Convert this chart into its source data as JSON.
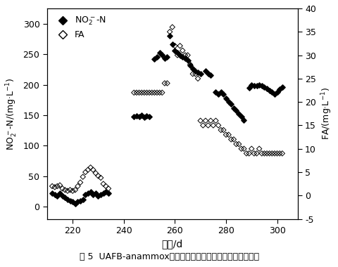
{
  "no2_n_data": [
    [
      212,
      22
    ],
    [
      213,
      20
    ],
    [
      214,
      18
    ],
    [
      215,
      22
    ],
    [
      216,
      18
    ],
    [
      217,
      15
    ],
    [
      218,
      12
    ],
    [
      219,
      10
    ],
    [
      220,
      8
    ],
    [
      221,
      5
    ],
    [
      222,
      8
    ],
    [
      223,
      10
    ],
    [
      224,
      12
    ],
    [
      225,
      20
    ],
    [
      226,
      22
    ],
    [
      227,
      25
    ],
    [
      228,
      20
    ],
    [
      229,
      22
    ],
    [
      230,
      18
    ],
    [
      231,
      20
    ],
    [
      232,
      22
    ],
    [
      233,
      25
    ],
    [
      234,
      22
    ],
    [
      244,
      148
    ],
    [
      245,
      149
    ],
    [
      246,
      148
    ],
    [
      247,
      150
    ],
    [
      248,
      147
    ],
    [
      249,
      149
    ],
    [
      250,
      148
    ],
    [
      252,
      242
    ],
    [
      253,
      246
    ],
    [
      254,
      252
    ],
    [
      255,
      249
    ],
    [
      256,
      243
    ],
    [
      257,
      246
    ],
    [
      258,
      280
    ],
    [
      259,
      266
    ],
    [
      260,
      256
    ],
    [
      261,
      252
    ],
    [
      262,
      248
    ],
    [
      263,
      246
    ],
    [
      264,
      243
    ],
    [
      265,
      240
    ],
    [
      266,
      232
    ],
    [
      267,
      226
    ],
    [
      268,
      222
    ],
    [
      269,
      220
    ],
    [
      270,
      218
    ],
    [
      272,
      222
    ],
    [
      273,
      218
    ],
    [
      274,
      215
    ],
    [
      276,
      188
    ],
    [
      277,
      185
    ],
    [
      278,
      188
    ],
    [
      279,
      185
    ],
    [
      280,
      178
    ],
    [
      281,
      172
    ],
    [
      282,
      168
    ],
    [
      283,
      162
    ],
    [
      284,
      158
    ],
    [
      285,
      152
    ],
    [
      286,
      148
    ],
    [
      287,
      142
    ],
    [
      289,
      195
    ],
    [
      290,
      200
    ],
    [
      291,
      198
    ],
    [
      292,
      198
    ],
    [
      293,
      200
    ],
    [
      294,
      198
    ],
    [
      295,
      196
    ],
    [
      296,
      194
    ],
    [
      297,
      190
    ],
    [
      298,
      188
    ],
    [
      299,
      185
    ],
    [
      300,
      188
    ],
    [
      301,
      192
    ],
    [
      302,
      196
    ]
  ],
  "fa_data": [
    [
      212,
      2.0
    ],
    [
      213,
      1.8
    ],
    [
      214,
      2.0
    ],
    [
      215,
      2.2
    ],
    [
      216,
      1.5
    ],
    [
      217,
      1.2
    ],
    [
      218,
      1.0
    ],
    [
      219,
      1.2
    ],
    [
      220,
      1.0
    ],
    [
      221,
      1.2
    ],
    [
      222,
      2.0
    ],
    [
      223,
      2.8
    ],
    [
      224,
      4.0
    ],
    [
      225,
      5.0
    ],
    [
      226,
      5.5
    ],
    [
      227,
      6.0
    ],
    [
      228,
      5.5
    ],
    [
      229,
      4.8
    ],
    [
      230,
      4.2
    ],
    [
      231,
      3.8
    ],
    [
      232,
      2.5
    ],
    [
      233,
      2.0
    ],
    [
      234,
      1.5
    ],
    [
      244,
      22
    ],
    [
      245,
      22
    ],
    [
      246,
      22
    ],
    [
      247,
      22
    ],
    [
      248,
      22
    ],
    [
      249,
      22
    ],
    [
      250,
      22
    ],
    [
      251,
      22
    ],
    [
      252,
      22
    ],
    [
      253,
      22
    ],
    [
      254,
      22
    ],
    [
      255,
      22
    ],
    [
      256,
      24
    ],
    [
      257,
      24
    ],
    [
      258,
      35
    ],
    [
      259,
      36
    ],
    [
      260,
      32
    ],
    [
      261,
      30
    ],
    [
      262,
      32
    ],
    [
      263,
      31
    ],
    [
      264,
      30
    ],
    [
      265,
      30
    ],
    [
      266,
      28
    ],
    [
      267,
      26
    ],
    [
      268,
      26
    ],
    [
      269,
      25
    ],
    [
      270,
      16
    ],
    [
      271,
      15
    ],
    [
      272,
      16
    ],
    [
      273,
      15
    ],
    [
      274,
      16
    ],
    [
      275,
      15
    ],
    [
      276,
      16
    ],
    [
      277,
      15
    ],
    [
      278,
      14
    ],
    [
      279,
      14
    ],
    [
      280,
      13
    ],
    [
      281,
      13
    ],
    [
      282,
      12
    ],
    [
      283,
      12
    ],
    [
      284,
      11
    ],
    [
      285,
      11
    ],
    [
      286,
      10
    ],
    [
      287,
      10
    ],
    [
      288,
      9
    ],
    [
      289,
      9
    ],
    [
      290,
      10
    ],
    [
      291,
      9
    ],
    [
      292,
      9
    ],
    [
      293,
      10
    ],
    [
      294,
      9
    ],
    [
      295,
      9
    ],
    [
      296,
      9
    ],
    [
      297,
      9
    ],
    [
      298,
      9
    ],
    [
      299,
      9
    ],
    [
      300,
      9
    ],
    [
      301,
      9
    ],
    [
      302,
      9
    ]
  ],
  "xlim": [
    210,
    308
  ],
  "ylim_left": [
    -20,
    325
  ],
  "ylim_right": [
    -5,
    40
  ],
  "xticks": [
    220,
    240,
    260,
    280,
    300
  ],
  "yticks_left": [
    0,
    50,
    100,
    150,
    200,
    250,
    300
  ],
  "yticks_right": [
    -5,
    0,
    5,
    10,
    15,
    20,
    25,
    30,
    35,
    40
  ],
  "xlabel": "时间/d",
  "caption": "图 5  UAFB-anammox反应器内亚瞄酸盐氮和游离氨变化趋势"
}
